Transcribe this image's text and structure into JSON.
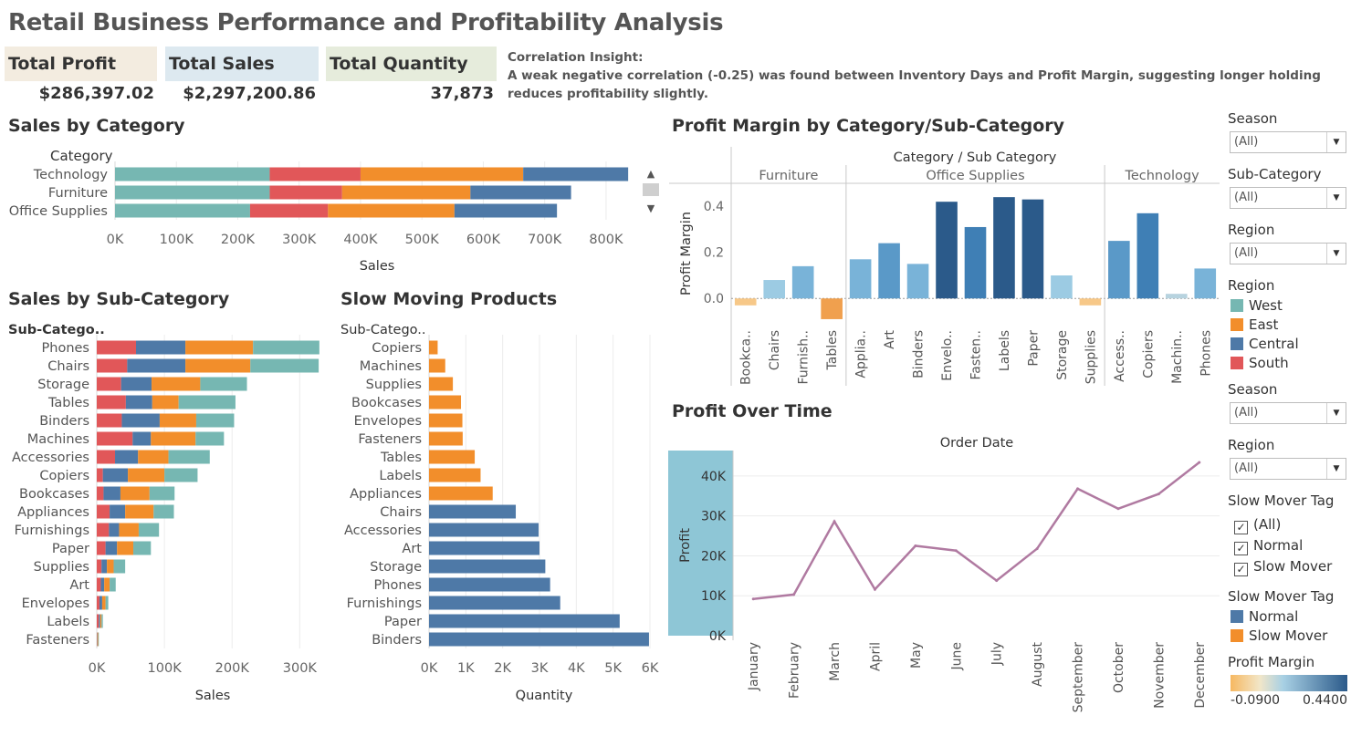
{
  "title": "Retail Business Performance and Profitability Analysis",
  "kpis": [
    {
      "label": "Total Profit",
      "value": "$286,397.02",
      "color": "#f3ece0"
    },
    {
      "label": "Total Sales",
      "value": "$2,297,200.86",
      "color": "#dde9f0"
    },
    {
      "label": "Total Quantity",
      "value": "37,873",
      "color": "#e6ecdc"
    }
  ],
  "insight": {
    "heading": "Correlation Insight:",
    "text": "A weak negative correlation (-0.25) was found between Inventory Days and Profit Margin, suggesting longer holding reduces profitability slightly."
  },
  "colors": {
    "West": "#76b7b2",
    "East": "#f28e2b",
    "Central": "#4e79a7",
    "South": "#e15759",
    "Normal": "#4e79a7",
    "SlowMover": "#f28e2b",
    "line": "#b07aa1",
    "highlight": "#8ec6d6"
  },
  "chart_data": [
    {
      "id": "sales_by_category",
      "type": "bar",
      "title": "Sales by Category",
      "row_header": "Category",
      "xlabel": "Sales",
      "orientation": "horizontal",
      "stacked": true,
      "categories": [
        "Technology",
        "Furniture",
        "Office Supplies"
      ],
      "series": [
        {
          "name": "West",
          "values": [
            252000,
            252000,
            220000
          ]
        },
        {
          "name": "South",
          "values": [
            148000,
            118000,
            127000
          ]
        },
        {
          "name": "East",
          "values": [
            265000,
            209000,
            206000
          ]
        },
        {
          "name": "Central",
          "values": [
            171000,
            164000,
            167000
          ]
        }
      ],
      "xlim": [
        0,
        870000
      ],
      "ticks": [
        0,
        100000,
        200000,
        300000,
        400000,
        500000,
        600000,
        700000,
        800000
      ],
      "tick_labels": [
        "0K",
        "100K",
        "200K",
        "300K",
        "400K",
        "500K",
        "600K",
        "700K",
        "800K"
      ]
    },
    {
      "id": "sales_by_subcategory",
      "type": "bar",
      "title": "Sales by Sub-Category",
      "row_header": "Sub-Catego..",
      "xlabel": "Sales",
      "orientation": "horizontal",
      "stacked": true,
      "categories": [
        "Phones",
        "Chairs",
        "Storage",
        "Tables",
        "Binders",
        "Machines",
        "Accessories",
        "Copiers",
        "Bookcases",
        "Appliances",
        "Furnishings",
        "Paper",
        "Supplies",
        "Art",
        "Envelopes",
        "Labels",
        "Fasteners"
      ],
      "series": [
        {
          "name": "South",
          "values": [
            58000,
            45000,
            36000,
            43000,
            37000,
            53000,
            27000,
            9000,
            10000,
            19000,
            18000,
            13000,
            7000,
            6000,
            4000,
            3000,
            500
          ]
        },
        {
          "name": "Central",
          "values": [
            73000,
            86000,
            45000,
            39000,
            56000,
            27000,
            34000,
            37000,
            25000,
            23000,
            15000,
            17000,
            8000,
            5000,
            4000,
            2000,
            500
          ]
        },
        {
          "name": "East",
          "values": [
            100000,
            96000,
            72000,
            39000,
            54000,
            66000,
            45000,
            54000,
            43000,
            42000,
            29000,
            24000,
            10000,
            8000,
            5000,
            2000,
            1000
          ]
        },
        {
          "name": "West",
          "values": [
            98000,
            101000,
            69000,
            84000,
            56000,
            42000,
            61000,
            49000,
            37000,
            30000,
            30000,
            26000,
            17000,
            9000,
            4000,
            2000,
            1000
          ]
        }
      ],
      "xlim": [
        0,
        340000
      ],
      "ticks": [
        0,
        100000,
        200000,
        300000
      ],
      "tick_labels": [
        "0K",
        "100K",
        "200K",
        "300K"
      ]
    },
    {
      "id": "slow_moving_products",
      "type": "bar",
      "title": "Slow Moving Products",
      "row_header": "Sub-Catego..",
      "xlabel": "Quantity",
      "orientation": "horizontal",
      "categories": [
        "Copiers",
        "Machines",
        "Supplies",
        "Bookcases",
        "Envelopes",
        "Fasteners",
        "Tables",
        "Labels",
        "Appliances",
        "Chairs",
        "Accessories",
        "Art",
        "Storage",
        "Phones",
        "Furnishings",
        "Paper",
        "Binders"
      ],
      "values": [
        234,
        440,
        647,
        868,
        906,
        914,
        1241,
        1400,
        1729,
        2356,
        2976,
        3000,
        3158,
        3289,
        3563,
        5178,
        5974
      ],
      "tags": [
        "Slow Mover",
        "Slow Mover",
        "Slow Mover",
        "Slow Mover",
        "Slow Mover",
        "Slow Mover",
        "Slow Mover",
        "Slow Mover",
        "Slow Mover",
        "Normal",
        "Normal",
        "Normal",
        "Normal",
        "Normal",
        "Normal",
        "Normal",
        "Normal"
      ],
      "xlim": [
        0,
        6000
      ],
      "ticks": [
        0,
        1000,
        2000,
        3000,
        4000,
        5000,
        6000
      ],
      "tick_labels": [
        "0K",
        "1K",
        "2K",
        "3K",
        "4K",
        "5K",
        "6K"
      ]
    },
    {
      "id": "profit_margin",
      "type": "bar",
      "title": "Profit Margin by Category/Sub-Category",
      "header": "Category  /  Sub Category",
      "ylabel": "Profit Margin",
      "groups": [
        {
          "name": "Furniture",
          "items": [
            {
              "label": "Bookca..",
              "value": -0.03
            },
            {
              "label": "Chairs",
              "value": 0.08
            },
            {
              "label": "Furnish..",
              "value": 0.14
            },
            {
              "label": "Tables",
              "value": -0.09
            }
          ]
        },
        {
          "name": "Office Supplies",
          "items": [
            {
              "label": "Applia..",
              "value": 0.17
            },
            {
              "label": "Art",
              "value": 0.24
            },
            {
              "label": "Binders",
              "value": 0.15
            },
            {
              "label": "Envelo..",
              "value": 0.42
            },
            {
              "label": "Fasten..",
              "value": 0.31
            },
            {
              "label": "Labels",
              "value": 0.44
            },
            {
              "label": "Paper",
              "value": 0.43
            },
            {
              "label": "Storage",
              "value": 0.1
            },
            {
              "label": "Supplies",
              "value": -0.03
            }
          ]
        },
        {
          "name": "Technology",
          "items": [
            {
              "label": "Access..",
              "value": 0.25
            },
            {
              "label": "Copiers",
              "value": 0.37
            },
            {
              "label": "Machin..",
              "value": 0.02
            },
            {
              "label": "Phones",
              "value": 0.13
            }
          ]
        }
      ],
      "ylim": [
        -0.11,
        0.5
      ],
      "ticks": [
        0.0,
        0.2,
        0.4
      ],
      "tick_labels": [
        "0.0",
        "0.2",
        "0.4"
      ]
    },
    {
      "id": "profit_over_time",
      "type": "line",
      "title": "Profit Over Time",
      "header": "Order Date",
      "ylabel": "Profit",
      "x": [
        "January",
        "February",
        "March",
        "April",
        "May",
        "June",
        "July",
        "August",
        "September",
        "October",
        "November",
        "December"
      ],
      "values": [
        9200,
        10300,
        28600,
        11600,
        22500,
        21300,
        13800,
        21800,
        36800,
        31800,
        35500,
        43400
      ],
      "ylim": [
        0,
        45000
      ],
      "ticks": [
        0,
        10000,
        20000,
        30000,
        40000
      ],
      "tick_labels": [
        "0K",
        "10K",
        "20K",
        "30K",
        "40K"
      ]
    }
  ],
  "filters": {
    "season1": {
      "label": "Season",
      "value": "(All)"
    },
    "subcategory": {
      "label": "Sub-Category",
      "value": "(All)"
    },
    "region1": {
      "label": "Region",
      "value": "(All)"
    },
    "region_legend": {
      "label": "Region",
      "items": [
        "West",
        "East",
        "Central",
        "South"
      ]
    },
    "season2": {
      "label": "Season",
      "value": "(All)"
    },
    "region2": {
      "label": "Region",
      "value": "(All)"
    },
    "slow_mover_filter": {
      "label": "Slow Mover Tag",
      "items": [
        "(All)",
        "Normal",
        "Slow Mover"
      ]
    },
    "slow_mover_legend": {
      "label": "Slow Mover Tag",
      "items": [
        "Normal",
        "Slow Mover"
      ]
    },
    "profit_margin_legend": {
      "label": "Profit Margin",
      "min": "-0.0900",
      "max": "0.4400"
    }
  }
}
